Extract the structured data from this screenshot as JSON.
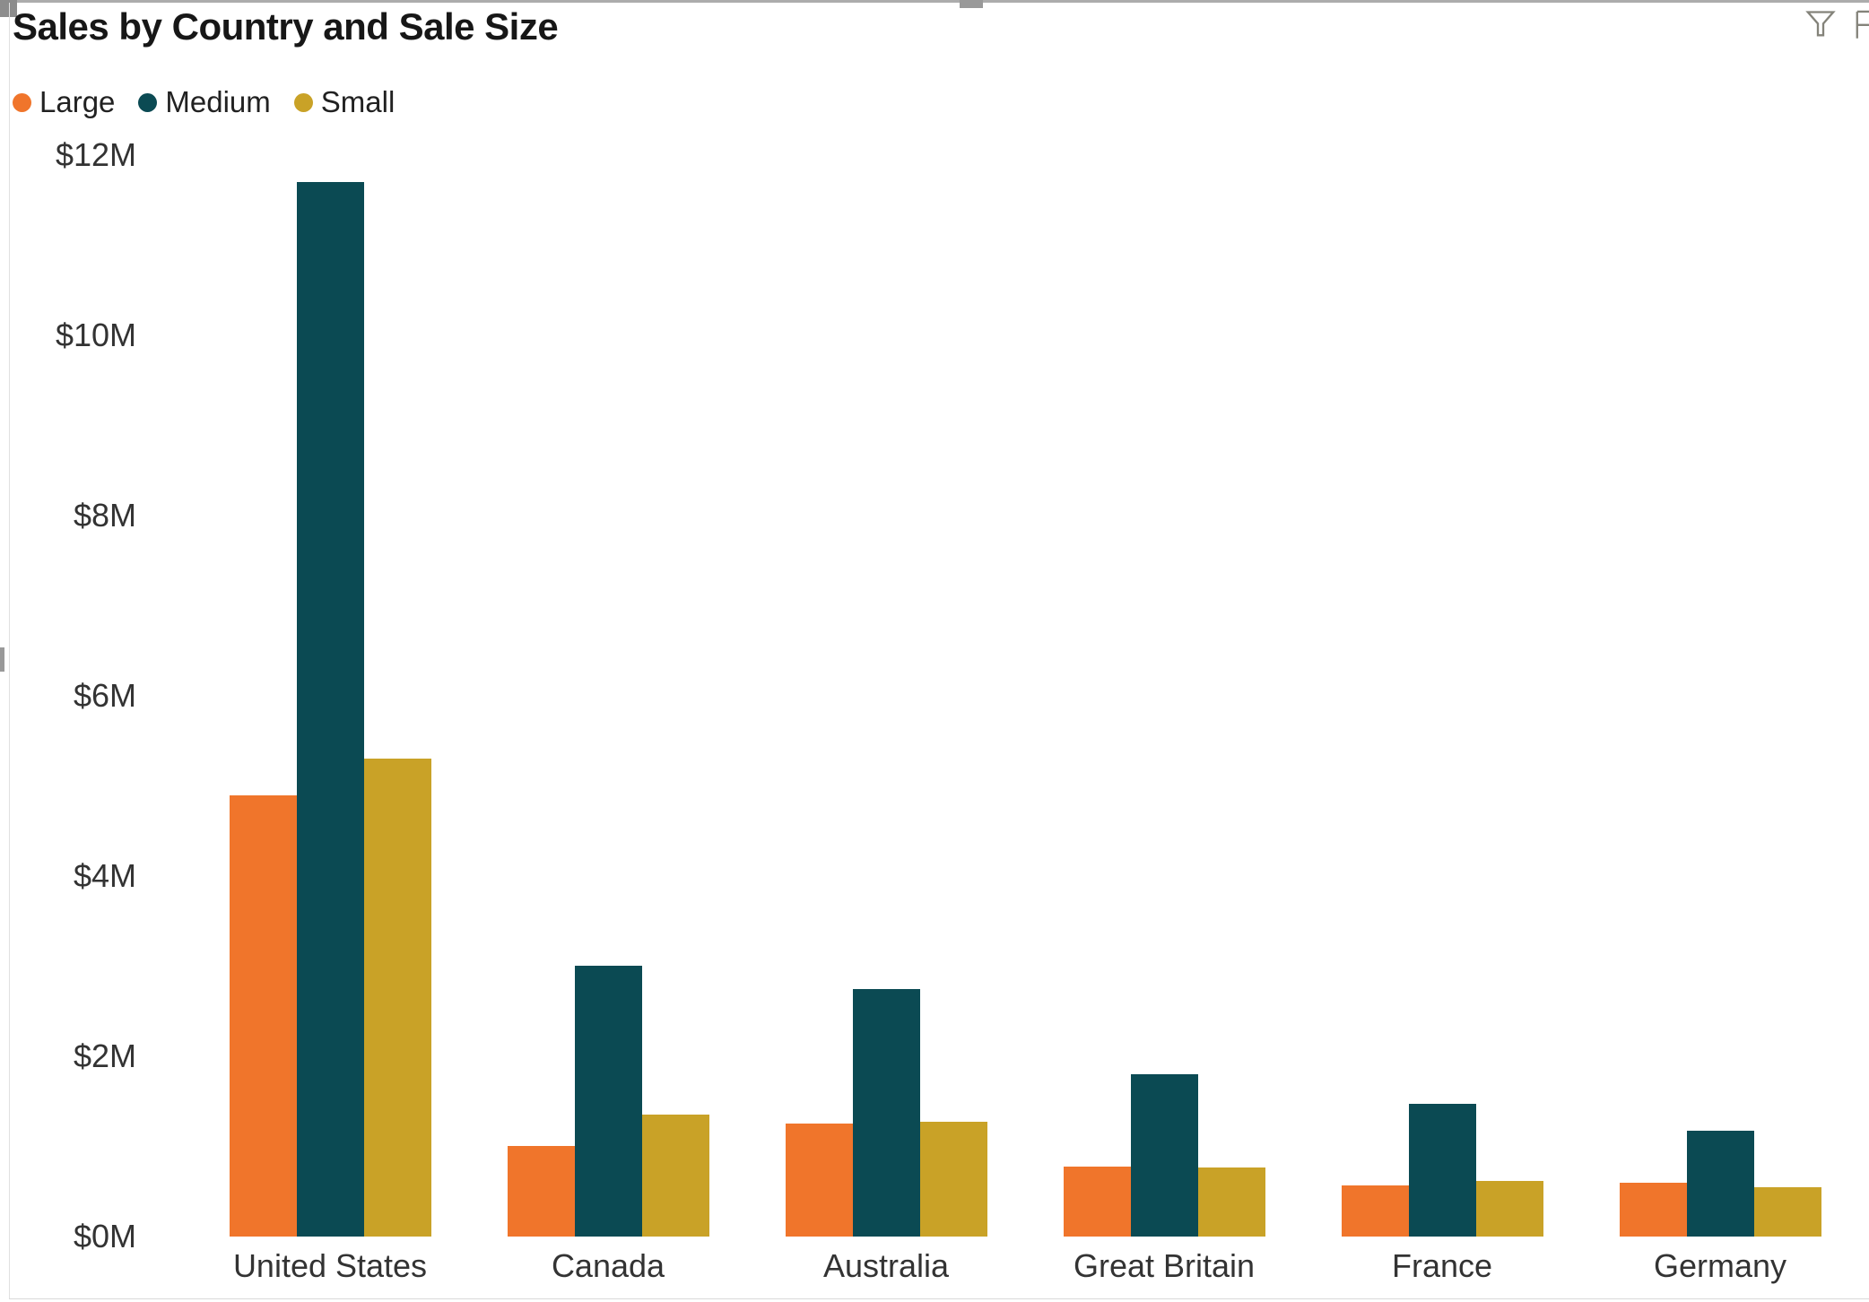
{
  "header": {
    "title": "Sales by Country and Sale Size",
    "icons": [
      {
        "name": "filter-icon",
        "glyph": "funnel"
      },
      {
        "name": "clipped-icon",
        "glyph": "partial-panel-cut-by-screen-edge"
      }
    ]
  },
  "legend": {
    "position": "top-left",
    "items": [
      {
        "label": "Large",
        "color": "#F0752B"
      },
      {
        "label": "Medium",
        "color": "#0B4A53"
      },
      {
        "label": "Small",
        "color": "#C9A227"
      }
    ]
  },
  "chart_data": {
    "type": "bar",
    "title": "Sales by Country and Sale Size",
    "xlabel": "",
    "ylabel": "",
    "y_unit_format": "$#M",
    "ylim": [
      0,
      12
    ],
    "grid": false,
    "legend_position": "top-left",
    "categories": [
      "United States",
      "Canada",
      "Australia",
      "Great Britain",
      "France",
      "Germany"
    ],
    "series": [
      {
        "name": "Large",
        "color": "#F0752B",
        "values": [
          4.9,
          1.0,
          1.25,
          0.78,
          0.57,
          0.6
        ]
      },
      {
        "name": "Medium",
        "color": "#0B4A53",
        "values": [
          11.7,
          3.0,
          2.75,
          1.8,
          1.47,
          1.17
        ]
      },
      {
        "name": "Small",
        "color": "#C9A227",
        "values": [
          5.3,
          1.35,
          1.27,
          0.77,
          0.62,
          0.55
        ]
      }
    ],
    "y_ticks": [
      {
        "label": "$0M",
        "value": 0
      },
      {
        "label": "$2M",
        "value": 2
      },
      {
        "label": "$4M",
        "value": 4
      },
      {
        "label": "$6M",
        "value": 6
      },
      {
        "label": "$8M",
        "value": 8
      },
      {
        "label": "$10M",
        "value": 10
      },
      {
        "label": "$12M",
        "value": 12
      }
    ]
  }
}
